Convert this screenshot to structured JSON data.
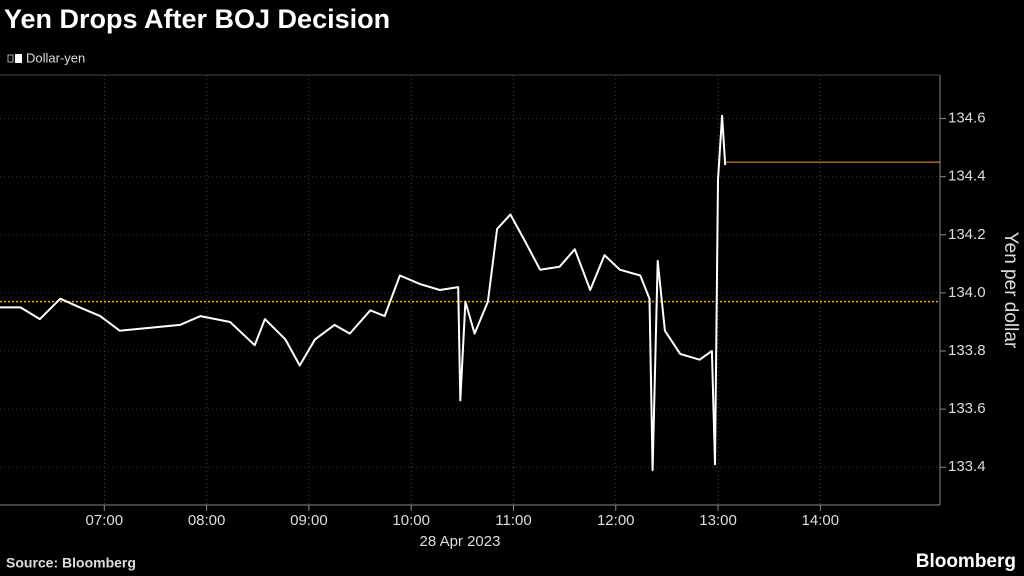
{
  "chart_data": {
    "type": "line",
    "title": "Yen Drops After BOJ Decision",
    "y_label": "Yen per dollar",
    "x_label": "28 Apr 2023",
    "source": "Source: Bloomberg",
    "brand": "Bloomberg",
    "x": [
      5.98,
      6.18,
      6.37,
      6.57,
      6.76,
      6.96,
      7.15,
      7.45,
      7.74,
      7.94,
      8.23,
      8.47,
      8.57,
      8.77,
      8.91,
      9.06,
      9.25,
      9.4,
      9.6,
      9.74,
      9.89,
      10.09,
      10.28,
      10.46,
      10.48,
      10.53,
      10.62,
      10.75,
      10.84,
      10.97,
      11.11,
      11.26,
      11.45,
      11.6,
      11.75,
      11.89,
      12.04,
      12.24,
      12.33,
      12.36,
      12.41,
      12.48,
      12.63,
      12.82,
      12.94,
      12.97,
      13.0,
      13.04,
      13.07
    ],
    "series": [
      {
        "name": "Dollar-yen",
        "color": "#ffffff",
        "values": [
          133.95,
          133.95,
          133.91,
          133.98,
          133.95,
          133.92,
          133.87,
          133.88,
          133.89,
          133.92,
          133.9,
          133.82,
          133.91,
          133.84,
          133.75,
          133.84,
          133.89,
          133.86,
          133.94,
          133.92,
          134.06,
          134.03,
          134.01,
          134.02,
          133.63,
          133.97,
          133.86,
          133.97,
          134.22,
          134.27,
          134.18,
          134.08,
          134.09,
          134.15,
          134.01,
          134.13,
          134.08,
          134.06,
          133.98,
          133.39,
          134.11,
          133.87,
          133.79,
          133.77,
          133.8,
          133.41,
          134.39,
          134.61,
          134.44
        ]
      }
    ],
    "reference_line": {
      "value": 133.97,
      "color": "#e5b300"
    },
    "last_price_line": {
      "value": 134.45,
      "color": "#f0a030"
    },
    "xlim": [
      5.98,
      15.17
    ],
    "xticks": [
      {
        "value": 7,
        "label": "07:00"
      },
      {
        "value": 8,
        "label": "08:00"
      },
      {
        "value": 9,
        "label": "09:00"
      },
      {
        "value": 10,
        "label": "10:00"
      },
      {
        "value": 11,
        "label": "11:00"
      },
      {
        "value": 12,
        "label": "12:00"
      },
      {
        "value": 13,
        "label": "13:00"
      },
      {
        "value": 14,
        "label": "14:00"
      }
    ],
    "ylim": [
      133.27,
      134.75
    ],
    "yticks": [
      133.4,
      133.6,
      133.8,
      {
        "value": 134,
        "label": "134.0"
      },
      134.2,
      134.4,
      134.6
    ],
    "grid": true
  }
}
